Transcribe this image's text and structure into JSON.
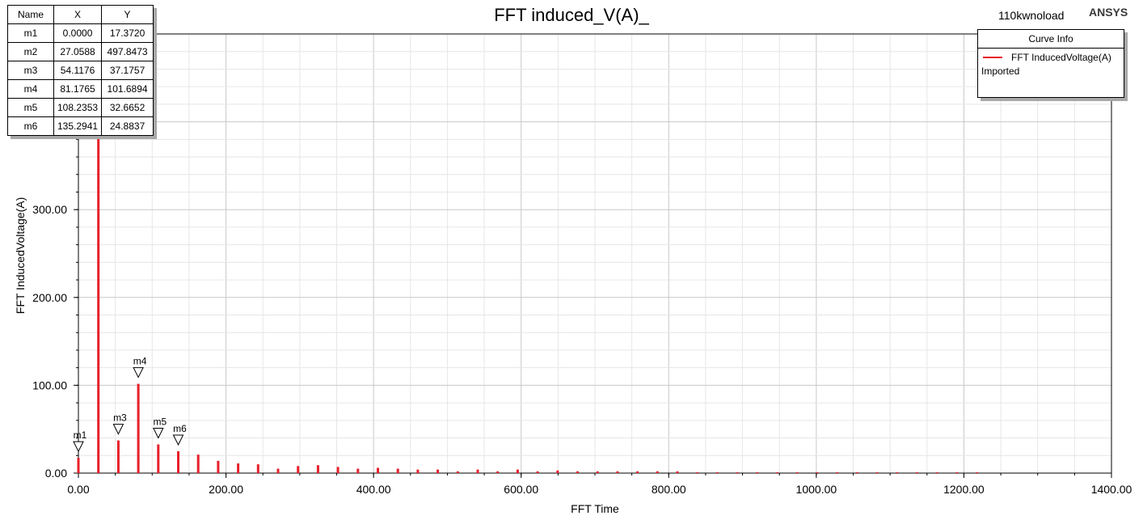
{
  "design_name": "110kwnoload",
  "brand": "ANSYS",
  "marker_table": {
    "headers": [
      "Name",
      "X",
      "Y"
    ],
    "rows": [
      [
        "m1",
        "0.0000",
        "17.3720"
      ],
      [
        "m2",
        "27.0588",
        "497.8473"
      ],
      [
        "m3",
        "54.1176",
        "37.1757"
      ],
      [
        "m4",
        "81.1765",
        "101.6894"
      ],
      [
        "m5",
        "108.2353",
        "32.6652"
      ],
      [
        "m6",
        "135.2941",
        "24.8837"
      ]
    ]
  },
  "curve_info": {
    "title": "Curve Info",
    "curve_name": "FFT InducedVoltage(A)",
    "source": "Imported",
    "color": "#e8202a"
  },
  "chart_data": {
    "type": "bar",
    "title": "FFT induced_V(A)_",
    "xlabel": "FFT Time",
    "ylabel": "FFT InducedVoltage(A)",
    "xlim": [
      0,
      1400
    ],
    "ylim": [
      0,
      500
    ],
    "x_ticks": [
      "0.00",
      "200.00",
      "400.00",
      "600.00",
      "800.00",
      "1000.00",
      "1200.00",
      "1400.00"
    ],
    "y_ticks": [
      "0.00",
      "100.00",
      "200.00",
      "300.00"
    ],
    "grid": true,
    "series": [
      {
        "name": "FFT InducedVoltage(A)",
        "color": "#e8202a",
        "x": [
          0,
          27.0588,
          54.1176,
          81.1765,
          108.2353,
          135.2941,
          162.35,
          189.41,
          216.47,
          243.53,
          270.59,
          297.65,
          324.71,
          351.76,
          378.82,
          405.88,
          432.94,
          460.0,
          487.06,
          514.12,
          541.18,
          568.24,
          595.29,
          622.35,
          649.41,
          676.47,
          703.53,
          730.59,
          757.65,
          784.71,
          811.76,
          838.82,
          865.88,
          892.94,
          920.0,
          947.06,
          974.12,
          1001.18,
          1028.24,
          1055.29,
          1082.35,
          1109.41,
          1136.47,
          1163.53,
          1190.59,
          1217.65
        ],
        "values": [
          17.372,
          497.8473,
          37.1757,
          101.6894,
          32.6652,
          24.8837,
          21,
          14,
          11,
          10,
          5,
          8,
          9,
          7,
          5,
          6,
          5,
          4,
          4,
          2,
          4,
          2,
          4,
          2,
          3,
          2,
          2,
          2,
          2,
          2,
          2,
          1,
          1,
          1,
          1,
          1,
          1,
          1,
          1,
          1,
          1,
          1,
          1,
          1,
          1,
          1
        ]
      }
    ],
    "markers": [
      {
        "name": "m1",
        "x": 0.0,
        "y": 17.372
      },
      {
        "name": "m2",
        "x": 27.0588,
        "y": 497.8473
      },
      {
        "name": "m3",
        "x": 54.1176,
        "y": 37.1757
      },
      {
        "name": "m4",
        "x": 81.1765,
        "y": 101.6894
      },
      {
        "name": "m5",
        "x": 108.2353,
        "y": 32.6652
      },
      {
        "name": "m6",
        "x": 135.2941,
        "y": 24.8837
      }
    ]
  }
}
